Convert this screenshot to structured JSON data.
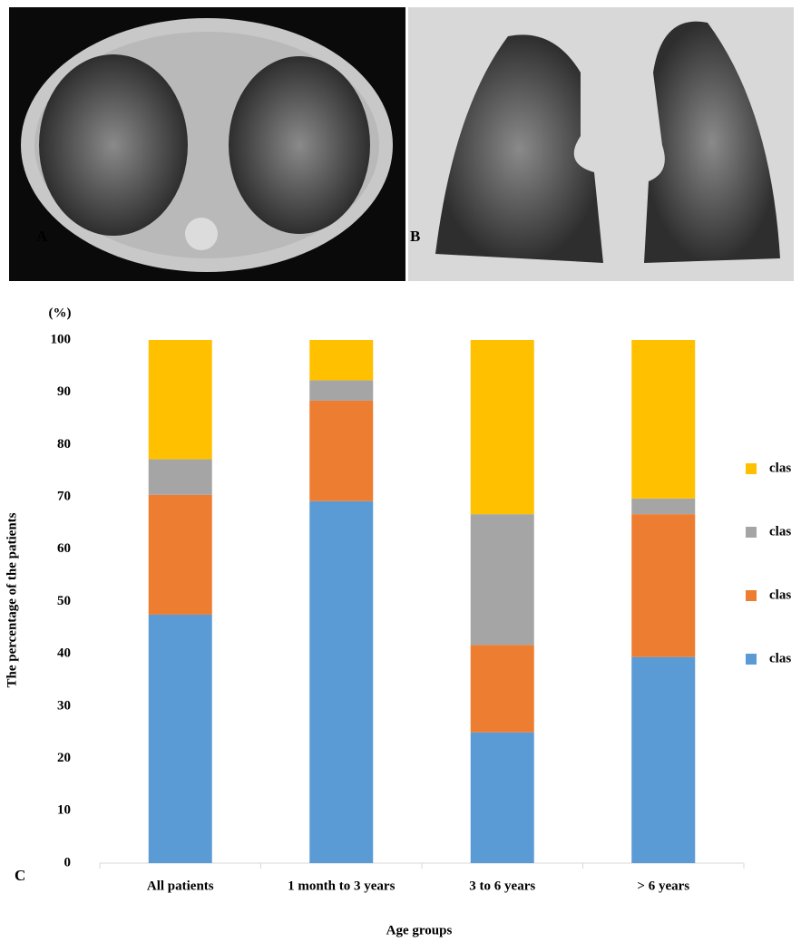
{
  "panel_labels": [
    "A",
    "B",
    "C"
  ],
  "chart_data": {
    "type": "stacked-bar",
    "y_unit": "(%)",
    "y_label": "The percentage of the patients",
    "x_label": "Age groups",
    "categories": [
      "All patients",
      "1 month to 3 years",
      "3 to 6 years",
      "> 6 years"
    ],
    "series": [
      {
        "name": "clas",
        "color": "#5b9bd5",
        "values": [
          47.5,
          69.2,
          25,
          39.4
        ]
      },
      {
        "name": "clas",
        "color": "#ed7d31",
        "values": [
          22.9,
          19.2,
          16.7,
          27.3
        ]
      },
      {
        "name": "clas",
        "color": "#a5a5a5",
        "values": [
          6.8,
          3.9,
          25,
          3.0
        ]
      },
      {
        "name": "clas",
        "color": "#ffc000",
        "values": [
          22.8,
          7.7,
          33.3,
          30.3
        ]
      }
    ],
    "ylim": [
      0,
      100
    ],
    "yticks": [
      0,
      10,
      20,
      30,
      40,
      50,
      60,
      70,
      80,
      90,
      100
    ],
    "grid": false,
    "legend": "right"
  }
}
